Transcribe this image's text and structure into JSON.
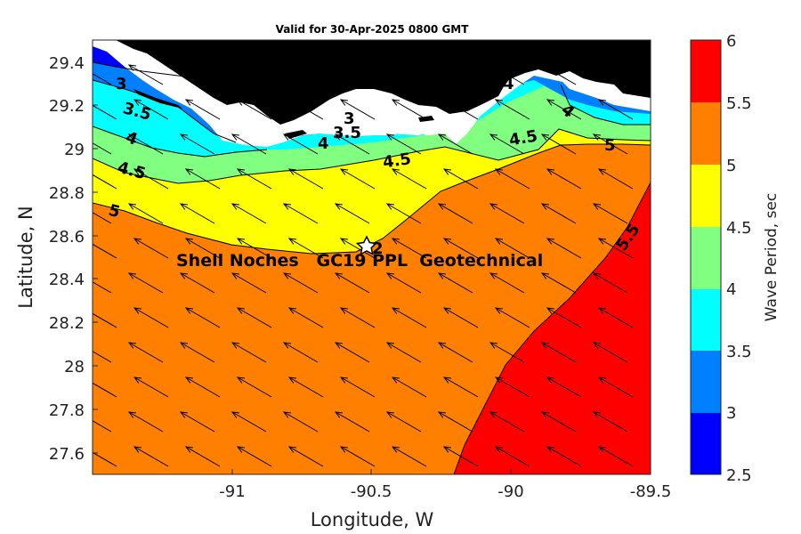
{
  "title": "Valid for 30-Apr-2025 0800 GMT",
  "x_axis": {
    "label": "Longitude, W",
    "range": [
      -91.5,
      -89.5
    ],
    "ticks": [
      "-91",
      "-90.5",
      "-90",
      "-89.5"
    ]
  },
  "y_axis": {
    "label": "Latitude, N",
    "range": [
      27.5,
      29.5
    ],
    "ticks": [
      "27.6",
      "27.8",
      "28",
      "28.2",
      "28.4",
      "28.6",
      "28.8",
      "29",
      "29.2",
      "29.4"
    ]
  },
  "colorbar": {
    "label": "Wave Period, sec",
    "levels": [
      "2.5",
      "3",
      "3.5",
      "4",
      "4.5",
      "5",
      "5.5",
      "6"
    ],
    "colors": [
      "#0000ff",
      "#0080ff",
      "#00ffff",
      "#80ff80",
      "#ffff00",
      "#ff8000",
      "#ff0000"
    ]
  },
  "site": {
    "label": "Shell Noches   GC19 PPL  Geotechnical",
    "marker_label": "2",
    "lon": -90.5,
    "lat": 28.55
  },
  "contour_labels": [
    "3",
    "3.5",
    "4",
    "4.5",
    "5",
    "4",
    "3.5",
    "3",
    "4",
    "4.5",
    "4.5",
    "4",
    "5",
    "5.5"
  ],
  "colors": {
    "land": "#000000",
    "coast_fringe": "#ffffff",
    "arrows": "#000000"
  },
  "arrow_direction": "toward north-west"
}
